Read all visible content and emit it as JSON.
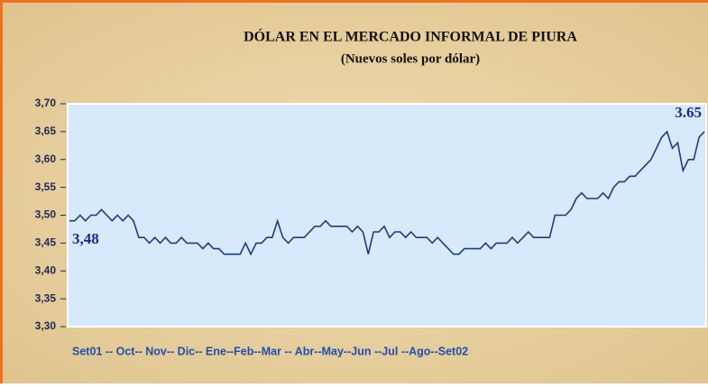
{
  "chart_data": {
    "type": "line",
    "title": "DÓLAR EN EL MERCADO INFORMAL DE PIURA",
    "subtitle": "(Nuevos soles por dólar)",
    "x_axis_text": "Set01 -- Oct-- Nov-- Dic-- Ene--Feb--Mar -- Abr--May--Jun --Jul --Ago--Set02",
    "ylim": [
      3.3,
      3.7
    ],
    "yticks": [
      {
        "value": 3.3,
        "label": "3,30"
      },
      {
        "value": 3.35,
        "label": "3,35"
      },
      {
        "value": 3.4,
        "label": "3,40"
      },
      {
        "value": 3.45,
        "label": "3,45"
      },
      {
        "value": 3.5,
        "label": "3,50"
      },
      {
        "value": 3.55,
        "label": "3,55"
      },
      {
        "value": 3.6,
        "label": "3,60"
      },
      {
        "value": 3.65,
        "label": "3,65"
      },
      {
        "value": 3.7,
        "label": "3,70"
      }
    ],
    "grid": false,
    "series": [
      {
        "color": "#1b3d80",
        "values": [
          3.49,
          3.49,
          3.5,
          3.49,
          3.5,
          3.5,
          3.51,
          3.5,
          3.49,
          3.5,
          3.49,
          3.5,
          3.49,
          3.46,
          3.46,
          3.45,
          3.46,
          3.45,
          3.46,
          3.45,
          3.45,
          3.46,
          3.45,
          3.45,
          3.45,
          3.44,
          3.45,
          3.44,
          3.44,
          3.43,
          3.43,
          3.43,
          3.43,
          3.45,
          3.43,
          3.45,
          3.45,
          3.46,
          3.46,
          3.49,
          3.46,
          3.45,
          3.46,
          3.46,
          3.46,
          3.47,
          3.48,
          3.48,
          3.49,
          3.48,
          3.48,
          3.48,
          3.48,
          3.47,
          3.48,
          3.47,
          3.43,
          3.47,
          3.47,
          3.48,
          3.46,
          3.47,
          3.47,
          3.46,
          3.47,
          3.46,
          3.46,
          3.46,
          3.45,
          3.46,
          3.45,
          3.44,
          3.43,
          3.43,
          3.44,
          3.44,
          3.44,
          3.44,
          3.45,
          3.44,
          3.45,
          3.45,
          3.45,
          3.46,
          3.45,
          3.46,
          3.47,
          3.46,
          3.46,
          3.46,
          3.46,
          3.5,
          3.5,
          3.5,
          3.51,
          3.53,
          3.54,
          3.53,
          3.53,
          3.53,
          3.54,
          3.53,
          3.55,
          3.56,
          3.56,
          3.57,
          3.57,
          3.58,
          3.59,
          3.6,
          3.62,
          3.64,
          3.65,
          3.62,
          3.63,
          3.58,
          3.6,
          3.6,
          3.64,
          3.65
        ]
      }
    ],
    "annotations": [
      {
        "value": 3.48,
        "label": "3,48"
      },
      {
        "value": 3.65,
        "label": "3.65"
      }
    ]
  }
}
